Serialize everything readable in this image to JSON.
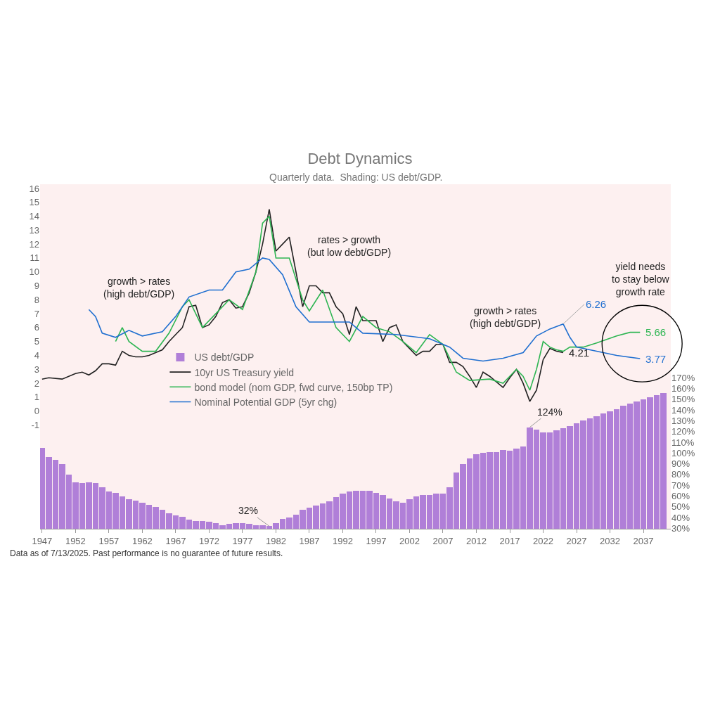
{
  "chart_data": {
    "type": "line",
    "title": "Debt Dynamics",
    "subtitle": "Quarterly data.  Shading: US debt/GDP.",
    "xlim": [
      1946.7,
      2041.1
    ],
    "xticks": [
      1947,
      1952,
      1957,
      1962,
      1967,
      1972,
      1977,
      1982,
      1987,
      1992,
      1997,
      2002,
      2007,
      2012,
      2017,
      2022,
      2027,
      2032,
      2037
    ],
    "ylim": [
      -8.45,
      16.3
    ],
    "yticks": [
      -1,
      0,
      1,
      2,
      3,
      4,
      5,
      6,
      7,
      8,
      9,
      10,
      11,
      12,
      13,
      14,
      15,
      16
    ],
    "y2lim": [
      29.6,
      350
    ],
    "y2ticks": [
      {
        "value": 30,
        "label": "30%"
      },
      {
        "value": 40,
        "label": "40%"
      },
      {
        "value": 50,
        "label": "50%"
      },
      {
        "value": 60,
        "label": "60%"
      },
      {
        "value": 70,
        "label": "70%"
      },
      {
        "value": 80,
        "label": "80%"
      },
      {
        "value": 90,
        "label": "90%"
      },
      {
        "value": 100,
        "label": "100%"
      },
      {
        "value": 110,
        "label": "110%"
      },
      {
        "value": 120,
        "label": "120%"
      },
      {
        "value": 130,
        "label": "130%"
      },
      {
        "value": 140,
        "label": "140%"
      },
      {
        "value": 150,
        "label": "150%"
      },
      {
        "value": 160,
        "label": "160%"
      },
      {
        "value": 170,
        "label": "170%"
      }
    ],
    "grid": false,
    "legend": "left",
    "marker": "none",
    "series": [
      {
        "name": "US debt/GDP",
        "type": "bar",
        "axis": "y2",
        "color": "#b07fd8",
        "x": [
          1947,
          1948,
          1949,
          1950,
          1951,
          1952,
          1953,
          1954,
          1955,
          1956,
          1957,
          1958,
          1959,
          1960,
          1961,
          1962,
          1963,
          1964,
          1965,
          1966,
          1967,
          1968,
          1969,
          1970,
          1971,
          1972,
          1973,
          1974,
          1975,
          1976,
          1977,
          1978,
          1979,
          1980,
          1981,
          1982,
          1983,
          1984,
          1985,
          1986,
          1987,
          1988,
          1989,
          1990,
          1991,
          1992,
          1993,
          1994,
          1995,
          1996,
          1997,
          1998,
          1999,
          2000,
          2001,
          2002,
          2003,
          2004,
          2005,
          2006,
          2007,
          2008,
          2009,
          2010,
          2011,
          2012,
          2013,
          2014,
          2015,
          2016,
          2017,
          2018,
          2019,
          2020,
          2021,
          2022,
          2023,
          2024,
          2025,
          2026,
          2027,
          2028,
          2029,
          2030,
          2031,
          2032,
          2033,
          2034,
          2035,
          2036,
          2037,
          2038,
          2039,
          2040
        ],
        "values": [
          105,
          96,
          94,
          90,
          80,
          73,
          72,
          73,
          72,
          68,
          64,
          63,
          60,
          57,
          56,
          54,
          52,
          50,
          47,
          44,
          42,
          41,
          38,
          37,
          37,
          36,
          35,
          33,
          34,
          35,
          35,
          34,
          33,
          33,
          32,
          35,
          39,
          40,
          43,
          47,
          49,
          51,
          53,
          55,
          59,
          62,
          64,
          65,
          65,
          65,
          63,
          61,
          58,
          55,
          54,
          57,
          60,
          61,
          61,
          62,
          62,
          68,
          82,
          90,
          95,
          99,
          100,
          101,
          101,
          103,
          102,
          104,
          106,
          124,
          122,
          119,
          119,
          121,
          123,
          125,
          128,
          130,
          132,
          134,
          137,
          139,
          141,
          144,
          146,
          148,
          150,
          152,
          154,
          156
        ],
        "value_labels": [
          null,
          null,
          null,
          null,
          null,
          null,
          null,
          null,
          null,
          null,
          null,
          null,
          null,
          null,
          null,
          null,
          null,
          null,
          null,
          null,
          null,
          null,
          null,
          null,
          null,
          null,
          null,
          null,
          null,
          null,
          null,
          null,
          null,
          null,
          "32%",
          null,
          null,
          null,
          null,
          null,
          null,
          null,
          null,
          null,
          null,
          null,
          null,
          null,
          null,
          null,
          null,
          null,
          null,
          null,
          null,
          null,
          null,
          null,
          null,
          null,
          null,
          null,
          null,
          null,
          null,
          null,
          null,
          null,
          null,
          null,
          null,
          null,
          null,
          "124%",
          null,
          null,
          null,
          null,
          null,
          null,
          null,
          null,
          null,
          null,
          null,
          null,
          null,
          null,
          null,
          null,
          null,
          null,
          null,
          null
        ]
      },
      {
        "name": "10yr US Treasury yield",
        "color": "#222222",
        "line_style": "solid",
        "x": [
          1947,
          1948,
          1950,
          1952,
          1953,
          1954,
          1955,
          1956,
          1957,
          1958,
          1959,
          1960,
          1961,
          1962,
          1963,
          1964,
          1965,
          1966,
          1967,
          1968,
          1969,
          1970,
          1971,
          1972,
          1973,
          1974,
          1975,
          1976,
          1977,
          1978,
          1979,
          1980,
          1981,
          1982,
          1983,
          1984,
          1985,
          1986,
          1987,
          1988,
          1989,
          1990,
          1991,
          1992,
          1993,
          1994,
          1995,
          1996,
          1997,
          1998,
          1999,
          2000,
          2001,
          2002,
          2003,
          2004,
          2005,
          2006,
          2007,
          2008,
          2009,
          2010,
          2011,
          2012,
          2013,
          2014,
          2015,
          2016,
          2017,
          2018,
          2019,
          2020,
          2021,
          2022,
          2023,
          2024,
          2025
        ],
        "values": [
          2.3,
          2.4,
          2.3,
          2.7,
          2.8,
          2.6,
          2.9,
          3.4,
          3.4,
          3.3,
          4.3,
          4.0,
          3.9,
          3.9,
          4.0,
          4.2,
          4.4,
          5.0,
          5.5,
          6.0,
          7.5,
          7.6,
          6.0,
          6.2,
          6.8,
          7.8,
          8.0,
          7.4,
          7.5,
          8.5,
          10.0,
          12.0,
          14.5,
          11.5,
          12.0,
          12.5,
          10.0,
          7.5,
          9.0,
          9.0,
          8.5,
          8.5,
          7.5,
          7.0,
          5.5,
          7.5,
          6.5,
          6.5,
          6.5,
          5.0,
          6.0,
          6.2,
          5.0,
          4.5,
          4.0,
          4.3,
          4.3,
          4.8,
          4.8,
          3.5,
          3.5,
          3.2,
          2.5,
          1.7,
          2.8,
          2.5,
          2.1,
          1.7,
          2.4,
          3.0,
          2.0,
          0.7,
          1.5,
          3.7,
          4.5,
          4.3,
          4.21
        ],
        "value_labels": [
          null,
          null,
          null,
          null,
          null,
          null,
          null,
          null,
          null,
          null,
          null,
          null,
          null,
          null,
          null,
          null,
          null,
          null,
          null,
          null,
          null,
          null,
          null,
          null,
          null,
          null,
          null,
          null,
          null,
          null,
          null,
          null,
          null,
          null,
          null,
          null,
          null,
          null,
          null,
          null,
          null,
          null,
          null,
          null,
          null,
          null,
          null,
          null,
          null,
          null,
          null,
          null,
          null,
          null,
          null,
          null,
          null,
          null,
          null,
          null,
          null,
          null,
          null,
          null,
          null,
          null,
          null,
          null,
          null,
          null,
          null,
          null,
          null,
          null,
          null,
          null,
          "4.21"
        ]
      },
      {
        "name": "bond model (nom GDP, fwd curve, 150bp TP)",
        "color": "#2db552",
        "x": [
          1958,
          1959,
          1960,
          1962,
          1964,
          1966,
          1968,
          1969,
          1971,
          1973,
          1975,
          1977,
          1979,
          1980,
          1981,
          1982,
          1984,
          1986,
          1987,
          1989,
          1991,
          1993,
          1995,
          1997,
          1999,
          2001,
          2003,
          2005,
          2007,
          2009,
          2011,
          2014,
          2016,
          2018,
          2019,
          2020,
          2021,
          2022,
          2023,
          2024,
          2025,
          2026,
          2028,
          2030,
          2033,
          2035,
          2036.5
        ],
        "values": [
          5.0,
          6.0,
          5.0,
          4.3,
          4.3,
          5.6,
          7.5,
          8.0,
          6.0,
          7.0,
          8.0,
          7.3,
          10.0,
          13.5,
          14.0,
          11.0,
          11.0,
          8.0,
          7.2,
          8.7,
          6.0,
          5.0,
          6.8,
          6.0,
          5.7,
          5.0,
          4.2,
          5.5,
          4.8,
          2.8,
          2.2,
          2.3,
          2.0,
          3.0,
          2.5,
          1.5,
          3.0,
          5.0,
          4.6,
          4.4,
          4.3,
          4.6,
          4.6,
          4.9,
          5.4,
          5.66,
          5.66
        ],
        "value_labels": [
          null,
          null,
          null,
          null,
          null,
          null,
          null,
          null,
          null,
          null,
          null,
          null,
          null,
          null,
          null,
          null,
          null,
          null,
          null,
          null,
          null,
          null,
          null,
          null,
          null,
          null,
          null,
          null,
          null,
          null,
          null,
          null,
          null,
          null,
          null,
          null,
          null,
          null,
          null,
          null,
          null,
          null,
          null,
          null,
          null,
          null,
          "5.66"
        ]
      },
      {
        "name": "Nominal Potential GDP (5yr chg)",
        "color": "#1f6fd0",
        "x": [
          1954,
          1955,
          1956,
          1958,
          1960,
          1962,
          1965,
          1967,
          1969,
          1972,
          1974,
          1976,
          1978,
          1980,
          1981,
          1983,
          1985,
          1987,
          1990,
          1993,
          1995,
          2000,
          2005,
          2008,
          2010,
          2013,
          2016,
          2019,
          2021,
          2023,
          2025,
          2026,
          2027,
          2030,
          2033,
          2036.5
        ],
        "values": [
          7.3,
          6.8,
          5.6,
          5.3,
          5.8,
          5.4,
          5.7,
          6.8,
          8.2,
          8.7,
          8.7,
          10.0,
          10.2,
          11.0,
          10.9,
          9.8,
          7.5,
          6.4,
          6.4,
          6.4,
          5.6,
          5.5,
          5.2,
          4.6,
          3.8,
          3.6,
          3.8,
          4.2,
          5.4,
          5.9,
          6.26,
          5.3,
          4.6,
          4.3,
          4.0,
          3.77
        ],
        "value_labels": [
          null,
          null,
          null,
          null,
          null,
          null,
          null,
          null,
          null,
          null,
          null,
          null,
          null,
          null,
          null,
          null,
          null,
          null,
          null,
          null,
          null,
          null,
          null,
          null,
          null,
          null,
          null,
          null,
          null,
          null,
          "6.26",
          null,
          null,
          null,
          null,
          "3.77"
        ]
      }
    ],
    "annotations": [
      "growth > rates\n(high debt/GDP)",
      "rates > growth\n(but low debt/GDP)",
      "growth > rates\n(high debt/GDP)",
      "yield needs\nto stay below\ngrowth rate",
      "Data as of 7/13/2025. Past performance is no guarantee of future results."
    ]
  }
}
